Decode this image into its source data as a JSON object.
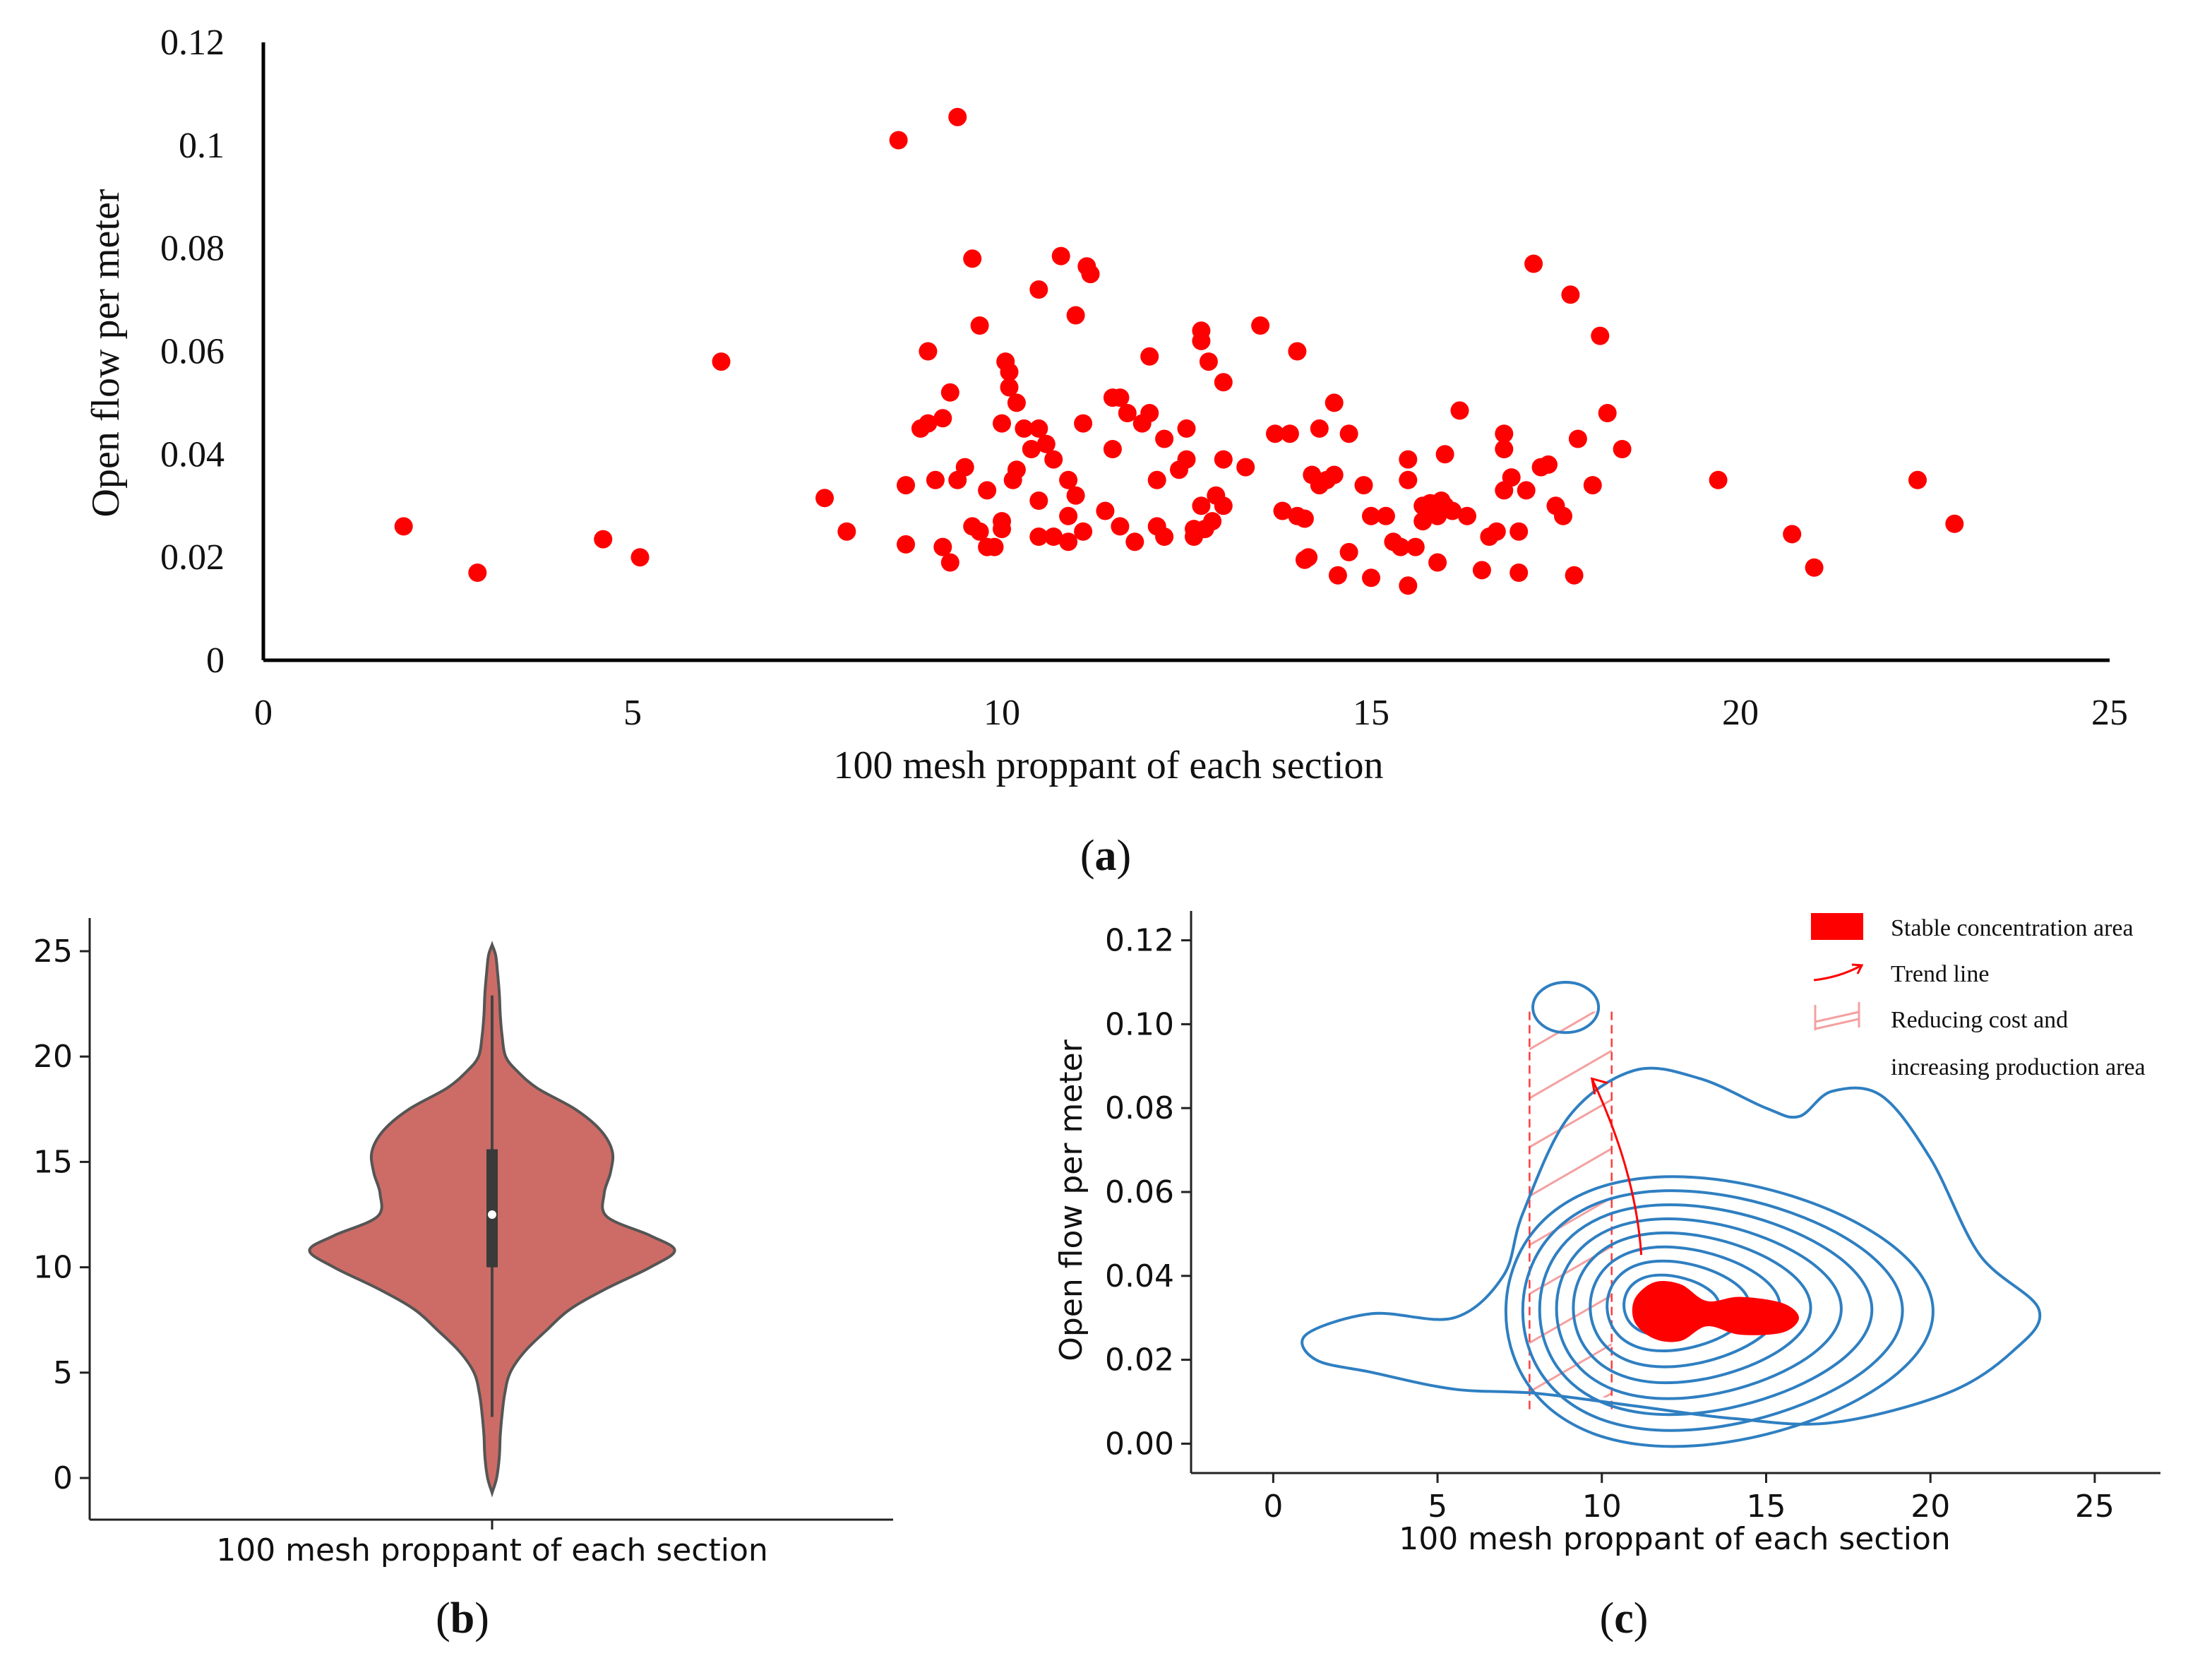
{
  "captions": {
    "a": "(a)",
    "a_letter": "a",
    "b": "(b)",
    "b_letter": "b",
    "c": "(c)",
    "c_letter": "c"
  },
  "colors": {
    "points": "#ff0000",
    "violin": "#cd6c66",
    "violin_edge": "#555555",
    "contour": "#2f7fc1",
    "stable": "#ff0000",
    "hatch": "#f4a0a0"
  },
  "chart_data": [
    {
      "id": "a",
      "type": "scatter",
      "xlabel": "100 mesh proppant of each section",
      "ylabel": "Open flow per meter",
      "xlim": [
        0,
        25
      ],
      "ylim": [
        0,
        0.12
      ],
      "xticks": [
        0,
        5,
        10,
        15,
        20,
        25
      ],
      "yticks": [
        0,
        0.02,
        0.04,
        0.06,
        0.08,
        0.1,
        0.12
      ],
      "ytick_labels": [
        "0",
        "0.02",
        "0.04",
        "0.06",
        "0.08",
        "0.1",
        "0.12"
      ],
      "grid": false,
      "points": [
        [
          1.9,
          0.026
        ],
        [
          2.9,
          0.017
        ],
        [
          4.6,
          0.0235
        ],
        [
          5.1,
          0.02
        ],
        [
          6.2,
          0.058
        ],
        [
          7.6,
          0.0315
        ],
        [
          7.9,
          0.025
        ],
        [
          8.6,
          0.101
        ],
        [
          8.7,
          0.034
        ],
        [
          8.7,
          0.0225
        ],
        [
          8.9,
          0.045
        ],
        [
          9.0,
          0.046
        ],
        [
          9.0,
          0.06
        ],
        [
          9.1,
          0.035
        ],
        [
          9.2,
          0.047
        ],
        [
          9.2,
          0.022
        ],
        [
          9.3,
          0.052
        ],
        [
          9.3,
          0.019
        ],
        [
          9.4,
          0.1055
        ],
        [
          9.4,
          0.035
        ],
        [
          9.5,
          0.0375
        ],
        [
          9.6,
          0.078
        ],
        [
          9.6,
          0.026
        ],
        [
          9.7,
          0.065
        ],
        [
          9.7,
          0.025
        ],
        [
          9.8,
          0.033
        ],
        [
          9.8,
          0.022
        ],
        [
          9.9,
          0.022
        ],
        [
          10.0,
          0.046
        ],
        [
          10.0,
          0.027
        ],
        [
          10.0,
          0.0255
        ],
        [
          10.05,
          0.058
        ],
        [
          10.1,
          0.056
        ],
        [
          10.1,
          0.053
        ],
        [
          10.15,
          0.035
        ],
        [
          10.2,
          0.05
        ],
        [
          10.2,
          0.037
        ],
        [
          10.3,
          0.045
        ],
        [
          10.4,
          0.041
        ],
        [
          10.5,
          0.072
        ],
        [
          10.5,
          0.045
        ],
        [
          10.5,
          0.031
        ],
        [
          10.5,
          0.024
        ],
        [
          10.6,
          0.042
        ],
        [
          10.7,
          0.039
        ],
        [
          10.7,
          0.024
        ],
        [
          10.8,
          0.0785
        ],
        [
          10.9,
          0.035
        ],
        [
          10.9,
          0.028
        ],
        [
          10.9,
          0.023
        ],
        [
          11.0,
          0.067
        ],
        [
          11.0,
          0.032
        ],
        [
          11.1,
          0.046
        ],
        [
          11.1,
          0.025
        ],
        [
          11.15,
          0.0765
        ],
        [
          11.2,
          0.075
        ],
        [
          11.4,
          0.029
        ],
        [
          11.5,
          0.051
        ],
        [
          11.5,
          0.041
        ],
        [
          11.6,
          0.051
        ],
        [
          11.6,
          0.026
        ],
        [
          11.7,
          0.048
        ],
        [
          11.8,
          0.023
        ],
        [
          11.9,
          0.046
        ],
        [
          12.0,
          0.048
        ],
        [
          12.0,
          0.059
        ],
        [
          12.1,
          0.035
        ],
        [
          12.1,
          0.026
        ],
        [
          12.2,
          0.043
        ],
        [
          12.2,
          0.024
        ],
        [
          12.4,
          0.037
        ],
        [
          12.5,
          0.045
        ],
        [
          12.5,
          0.039
        ],
        [
          12.6,
          0.0255
        ],
        [
          12.6,
          0.024
        ],
        [
          12.7,
          0.064
        ],
        [
          12.7,
          0.062
        ],
        [
          12.7,
          0.03
        ],
        [
          12.75,
          0.0255
        ],
        [
          12.8,
          0.058
        ],
        [
          12.85,
          0.027
        ],
        [
          12.9,
          0.032
        ],
        [
          13.0,
          0.054
        ],
        [
          13.0,
          0.039
        ],
        [
          13.0,
          0.03
        ],
        [
          13.3,
          0.0375
        ],
        [
          13.5,
          0.065
        ],
        [
          13.7,
          0.044
        ],
        [
          13.8,
          0.029
        ],
        [
          13.9,
          0.044
        ],
        [
          14.0,
          0.028
        ],
        [
          14.0,
          0.06
        ],
        [
          14.1,
          0.0275
        ],
        [
          14.1,
          0.0195
        ],
        [
          14.15,
          0.02
        ],
        [
          14.2,
          0.036
        ],
        [
          14.3,
          0.034
        ],
        [
          14.3,
          0.045
        ],
        [
          14.4,
          0.035
        ],
        [
          14.5,
          0.036
        ],
        [
          14.5,
          0.05
        ],
        [
          14.55,
          0.0165
        ],
        [
          14.7,
          0.021
        ],
        [
          14.7,
          0.044
        ],
        [
          14.9,
          0.034
        ],
        [
          15.0,
          0.028
        ],
        [
          15.0,
          0.016
        ],
        [
          15.2,
          0.028
        ],
        [
          15.3,
          0.023
        ],
        [
          15.4,
          0.022
        ],
        [
          15.5,
          0.039
        ],
        [
          15.5,
          0.035
        ],
        [
          15.5,
          0.0145
        ],
        [
          15.6,
          0.022
        ],
        [
          15.7,
          0.027
        ],
        [
          15.7,
          0.03
        ],
        [
          15.8,
          0.029
        ],
        [
          15.8,
          0.0305
        ],
        [
          15.9,
          0.028
        ],
        [
          15.9,
          0.019
        ],
        [
          15.95,
          0.031
        ],
        [
          16.0,
          0.04
        ],
        [
          16.0,
          0.03
        ],
        [
          16.1,
          0.029
        ],
        [
          16.2,
          0.0485
        ],
        [
          16.3,
          0.028
        ],
        [
          16.5,
          0.0175
        ],
        [
          16.6,
          0.024
        ],
        [
          16.7,
          0.025
        ],
        [
          16.8,
          0.044
        ],
        [
          16.8,
          0.033
        ],
        [
          16.8,
          0.041
        ],
        [
          16.9,
          0.0355
        ],
        [
          17.0,
          0.017
        ],
        [
          17.0,
          0.025
        ],
        [
          17.1,
          0.033
        ],
        [
          17.2,
          0.077
        ],
        [
          17.3,
          0.0375
        ],
        [
          17.4,
          0.038
        ],
        [
          17.5,
          0.03
        ],
        [
          17.6,
          0.028
        ],
        [
          17.7,
          0.071
        ],
        [
          17.75,
          0.0165
        ],
        [
          17.8,
          0.043
        ],
        [
          18.0,
          0.034
        ],
        [
          18.1,
          0.063
        ],
        [
          18.2,
          0.048
        ],
        [
          18.4,
          0.041
        ],
        [
          19.7,
          0.035
        ],
        [
          20.7,
          0.0245
        ],
        [
          21.0,
          0.018
        ],
        [
          22.4,
          0.035
        ],
        [
          22.9,
          0.0265
        ]
      ]
    },
    {
      "id": "b",
      "type": "violin",
      "xlabel": "100 mesh proppant of each section",
      "ylim": [
        -1,
        26
      ],
      "yticks": [
        0,
        5,
        10,
        15,
        20,
        25
      ],
      "violin_profile": [
        [
          -0.7,
          0
        ],
        [
          0,
          0.05
        ],
        [
          1,
          0.08
        ],
        [
          2,
          0.09
        ],
        [
          3,
          0.11
        ],
        [
          4,
          0.14
        ],
        [
          5,
          0.2
        ],
        [
          6,
          0.36
        ],
        [
          7,
          0.6
        ],
        [
          8,
          0.86
        ],
        [
          9,
          1.27
        ],
        [
          10,
          1.75
        ],
        [
          10.8,
          2.02
        ],
        [
          11.5,
          1.75
        ],
        [
          12.4,
          1.27
        ],
        [
          13.5,
          1.24
        ],
        [
          14.5,
          1.31
        ],
        [
          15.5,
          1.33
        ],
        [
          16.5,
          1.2
        ],
        [
          17.5,
          0.92
        ],
        [
          18.5,
          0.5
        ],
        [
          19.3,
          0.28
        ],
        [
          20,
          0.15
        ],
        [
          21,
          0.11
        ],
        [
          22,
          0.09
        ],
        [
          23,
          0.08
        ],
        [
          24,
          0.06
        ],
        [
          24.8,
          0.04
        ],
        [
          25.3,
          0
        ]
      ],
      "box": {
        "q1": 10,
        "median": 12.5,
        "q3": 15.6,
        "whisker_low": 2.9,
        "whisker_high": 22.9
      }
    },
    {
      "id": "c",
      "type": "kde_contour",
      "xlabel": "100 mesh proppant of each section",
      "ylabel": "Open flow per meter",
      "xlim": [
        -2.5,
        27
      ],
      "ylim": [
        -0.007,
        0.127
      ],
      "xticks": [
        0,
        5,
        10,
        15,
        20,
        25
      ],
      "yticks": [
        0,
        0.02,
        0.04,
        0.06,
        0.08,
        0.1,
        0.12
      ],
      "ytick_labels": [
        "0.00",
        "0.02",
        "0.04",
        "0.06",
        "0.08",
        "0.10",
        "0.12"
      ],
      "outer_contour": [
        [
          1,
          0.026
        ],
        [
          3,
          0.031
        ],
        [
          5.5,
          0.03
        ],
        [
          7,
          0.04
        ],
        [
          7.6,
          0.055
        ],
        [
          9,
          0.078
        ],
        [
          11,
          0.089
        ],
        [
          13,
          0.087
        ],
        [
          15,
          0.08
        ],
        [
          16,
          0.078
        ],
        [
          17,
          0.084
        ],
        [
          18.5,
          0.083
        ],
        [
          20,
          0.068
        ],
        [
          21.5,
          0.045
        ],
        [
          23.3,
          0.032
        ],
        [
          22.5,
          0.022
        ],
        [
          20.5,
          0.012
        ],
        [
          17,
          0.005
        ],
        [
          14,
          0.006
        ],
        [
          11,
          0.009
        ],
        [
          8,
          0.012
        ],
        [
          5.5,
          0.013
        ],
        [
          3,
          0.017
        ],
        [
          1.3,
          0.02
        ]
      ],
      "small_contour": {
        "center": [
          8.9,
          0.104
        ],
        "radius": [
          1.0,
          0.006
        ]
      },
      "rings": [
        {
          "center": [
            12.8,
            0.0335
          ],
          "half_width": [
            6.5,
            0.032
          ],
          "levels": 9
        }
      ],
      "stable_area": [
        [
          11,
          0.0345
        ],
        [
          11.6,
          0.0385
        ],
        [
          12.4,
          0.038
        ],
        [
          13.2,
          0.034
        ],
        [
          14.2,
          0.035
        ],
        [
          15.5,
          0.0335
        ],
        [
          16,
          0.03
        ],
        [
          15.5,
          0.0265
        ],
        [
          14.2,
          0.026
        ],
        [
          13.2,
          0.028
        ],
        [
          12.4,
          0.0245
        ],
        [
          11.6,
          0.025
        ],
        [
          11,
          0.029
        ]
      ],
      "trend_line": [
        [
          11.2,
          0.045
        ],
        [
          10.6,
          0.065
        ],
        [
          9.7,
          0.087
        ]
      ],
      "dashed_lines_x": [
        7.8,
        10.3
      ],
      "legend": [
        {
          "label": "Stable concentration area",
          "kind": "patch"
        },
        {
          "label": "Trend line",
          "kind": "arrow"
        },
        {
          "label": "Reducing cost and",
          "kind": "hatch"
        },
        {
          "label": "increasing production area",
          "kind": "text"
        }
      ]
    }
  ]
}
